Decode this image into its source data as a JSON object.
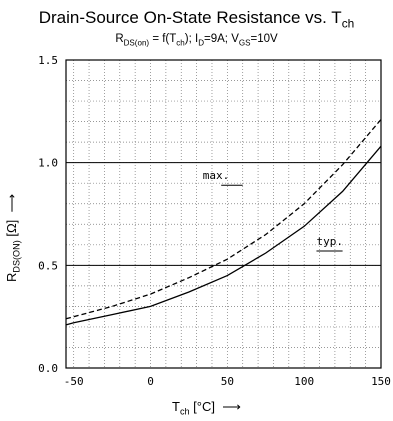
{
  "chart_data": {
    "type": "line",
    "title": {
      "main": "Drain-Source On-State Resistance vs. T",
      "main_sub": "ch"
    },
    "subtitle": {
      "r": "R",
      "r_sub": "DS(on)",
      "eq": " = f(T",
      "t_sub": "ch",
      "id": "); I",
      "id_sub": "D",
      "id_val": "=9A; V",
      "vgs_sub": "GS",
      "vgs_val": "=10V"
    },
    "ylabel": {
      "r": "R",
      "r_sub": "DS(ON)",
      "unit": " [Ω]",
      "arrow": "⟶"
    },
    "xlabel": {
      "t": "T",
      "t_sub": "ch",
      "unit": " [°C]",
      "arrow": "⟶"
    },
    "xlim": [
      -55,
      150
    ],
    "ylim": [
      0,
      1.5
    ],
    "x_ticks": [
      "-50",
      "0",
      "50",
      "100",
      "150"
    ],
    "y_ticks": [
      "0.0",
      "0.5",
      "1.0",
      "1.5"
    ],
    "grid": true,
    "series": [
      {
        "name": "max.",
        "style": "dashed",
        "x": [
          -55,
          -50,
          -25,
          0,
          25,
          50,
          75,
          100,
          125,
          150
        ],
        "y": [
          0.24,
          0.25,
          0.3,
          0.36,
          0.44,
          0.53,
          0.65,
          0.8,
          0.99,
          1.21
        ]
      },
      {
        "name": "typ.",
        "style": "solid",
        "x": [
          -55,
          -50,
          -25,
          0,
          25,
          50,
          75,
          100,
          125,
          150
        ],
        "y": [
          0.21,
          0.22,
          0.26,
          0.3,
          0.37,
          0.45,
          0.56,
          0.69,
          0.86,
          1.08
        ]
      }
    ]
  }
}
